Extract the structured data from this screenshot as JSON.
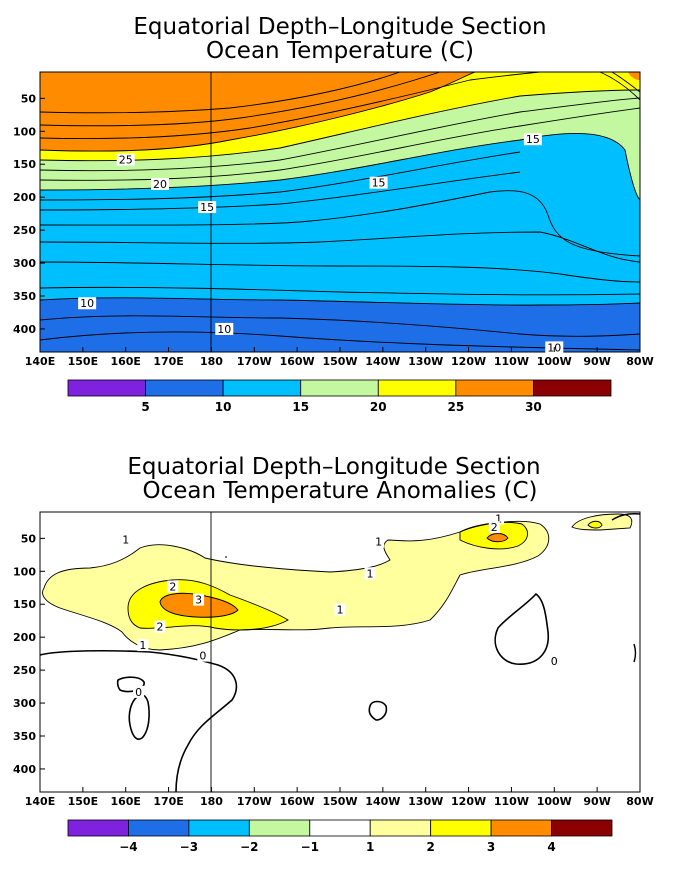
{
  "chart_data": [
    {
      "type": "heatmap",
      "title": "Equatorial Depth–Longitude Section",
      "subtitle": "Ocean Temperature (C)",
      "x_ticks": [
        "140E",
        "150E",
        "160E",
        "170E",
        "180",
        "170W",
        "160W",
        "150W",
        "140W",
        "130W",
        "120W",
        "110W",
        "100W",
        "90W",
        "80W"
      ],
      "y_ticks": [
        50,
        100,
        150,
        200,
        250,
        300,
        350,
        400
      ],
      "xlim": [
        "140E",
        "80W"
      ],
      "ylim": [
        435,
        10
      ],
      "date_line": "180",
      "colorbar": {
        "levels": [
          5,
          10,
          15,
          20,
          25,
          30
        ],
        "colors": [
          "#7f22e0",
          "#1e6ee8",
          "#00bfff",
          "#c3f7a0",
          "#ffff00",
          "#ff8c00",
          "#8b0000"
        ]
      },
      "contour_labels": [
        {
          "text": "25",
          "lon": "160E",
          "depth": 143
        },
        {
          "text": "20",
          "lon": "168E",
          "depth": 180
        },
        {
          "text": "15",
          "lon": "179E",
          "depth": 215
        },
        {
          "text": "15",
          "lon": "141W",
          "depth": 178
        },
        {
          "text": "15",
          "lon": "105W",
          "depth": 112
        },
        {
          "text": "10",
          "lon": "151E",
          "depth": 361
        },
        {
          "text": "10",
          "lon": "177W",
          "depth": 400
        },
        {
          "text": "10",
          "lon": "100W",
          "depth": 428
        }
      ]
    },
    {
      "type": "heatmap",
      "title": "Equatorial Depth–Longitude Section",
      "subtitle": "Ocean Temperature Anomalies (C)",
      "x_ticks": [
        "140E",
        "150E",
        "160E",
        "170E",
        "180",
        "170W",
        "160W",
        "150W",
        "140W",
        "130W",
        "120W",
        "110W",
        "100W",
        "90W",
        "80W"
      ],
      "y_ticks": [
        50,
        100,
        150,
        200,
        250,
        300,
        350,
        400
      ],
      "xlim": [
        "140E",
        "80W"
      ],
      "ylim": [
        435,
        10
      ],
      "date_line": "180",
      "colorbar": {
        "tick_labels": [
          "−4",
          "−3",
          "−2",
          "−1",
          "1",
          "2",
          "3",
          "4"
        ],
        "colors": [
          "#7f22e0",
          "#1e6ee8",
          "#00bfff",
          "#c3f7a0",
          "#ffffff",
          "#ffff9e",
          "#ffff00",
          "#ff8c00",
          "#8b0000"
        ]
      },
      "contour_labels": [
        {
          "text": "1",
          "lon": "160E",
          "depth": 52
        },
        {
          "text": "1",
          "lon": "141W",
          "depth": 55
        },
        {
          "text": "1",
          "lon": "113W",
          "depth": 20
        },
        {
          "text": "2",
          "lon": "114W",
          "depth": 33
        },
        {
          "text": "1",
          "lon": "143W",
          "depth": 103
        },
        {
          "text": "2",
          "lon": "171E",
          "depth": 123
        },
        {
          "text": "3",
          "lon": "177E",
          "depth": 143
        },
        {
          "text": "2",
          "lon": "168E",
          "depth": 184
        },
        {
          "text": "1",
          "lon": "164E",
          "depth": 212
        },
        {
          "text": "1",
          "lon": "150W",
          "depth": 158
        },
        {
          "text": "0",
          "lon": "178E",
          "depth": 228
        },
        {
          "text": "0",
          "lon": "163E",
          "depth": 283
        },
        {
          "text": "0",
          "lon": "100W",
          "depth": 236
        }
      ]
    }
  ]
}
